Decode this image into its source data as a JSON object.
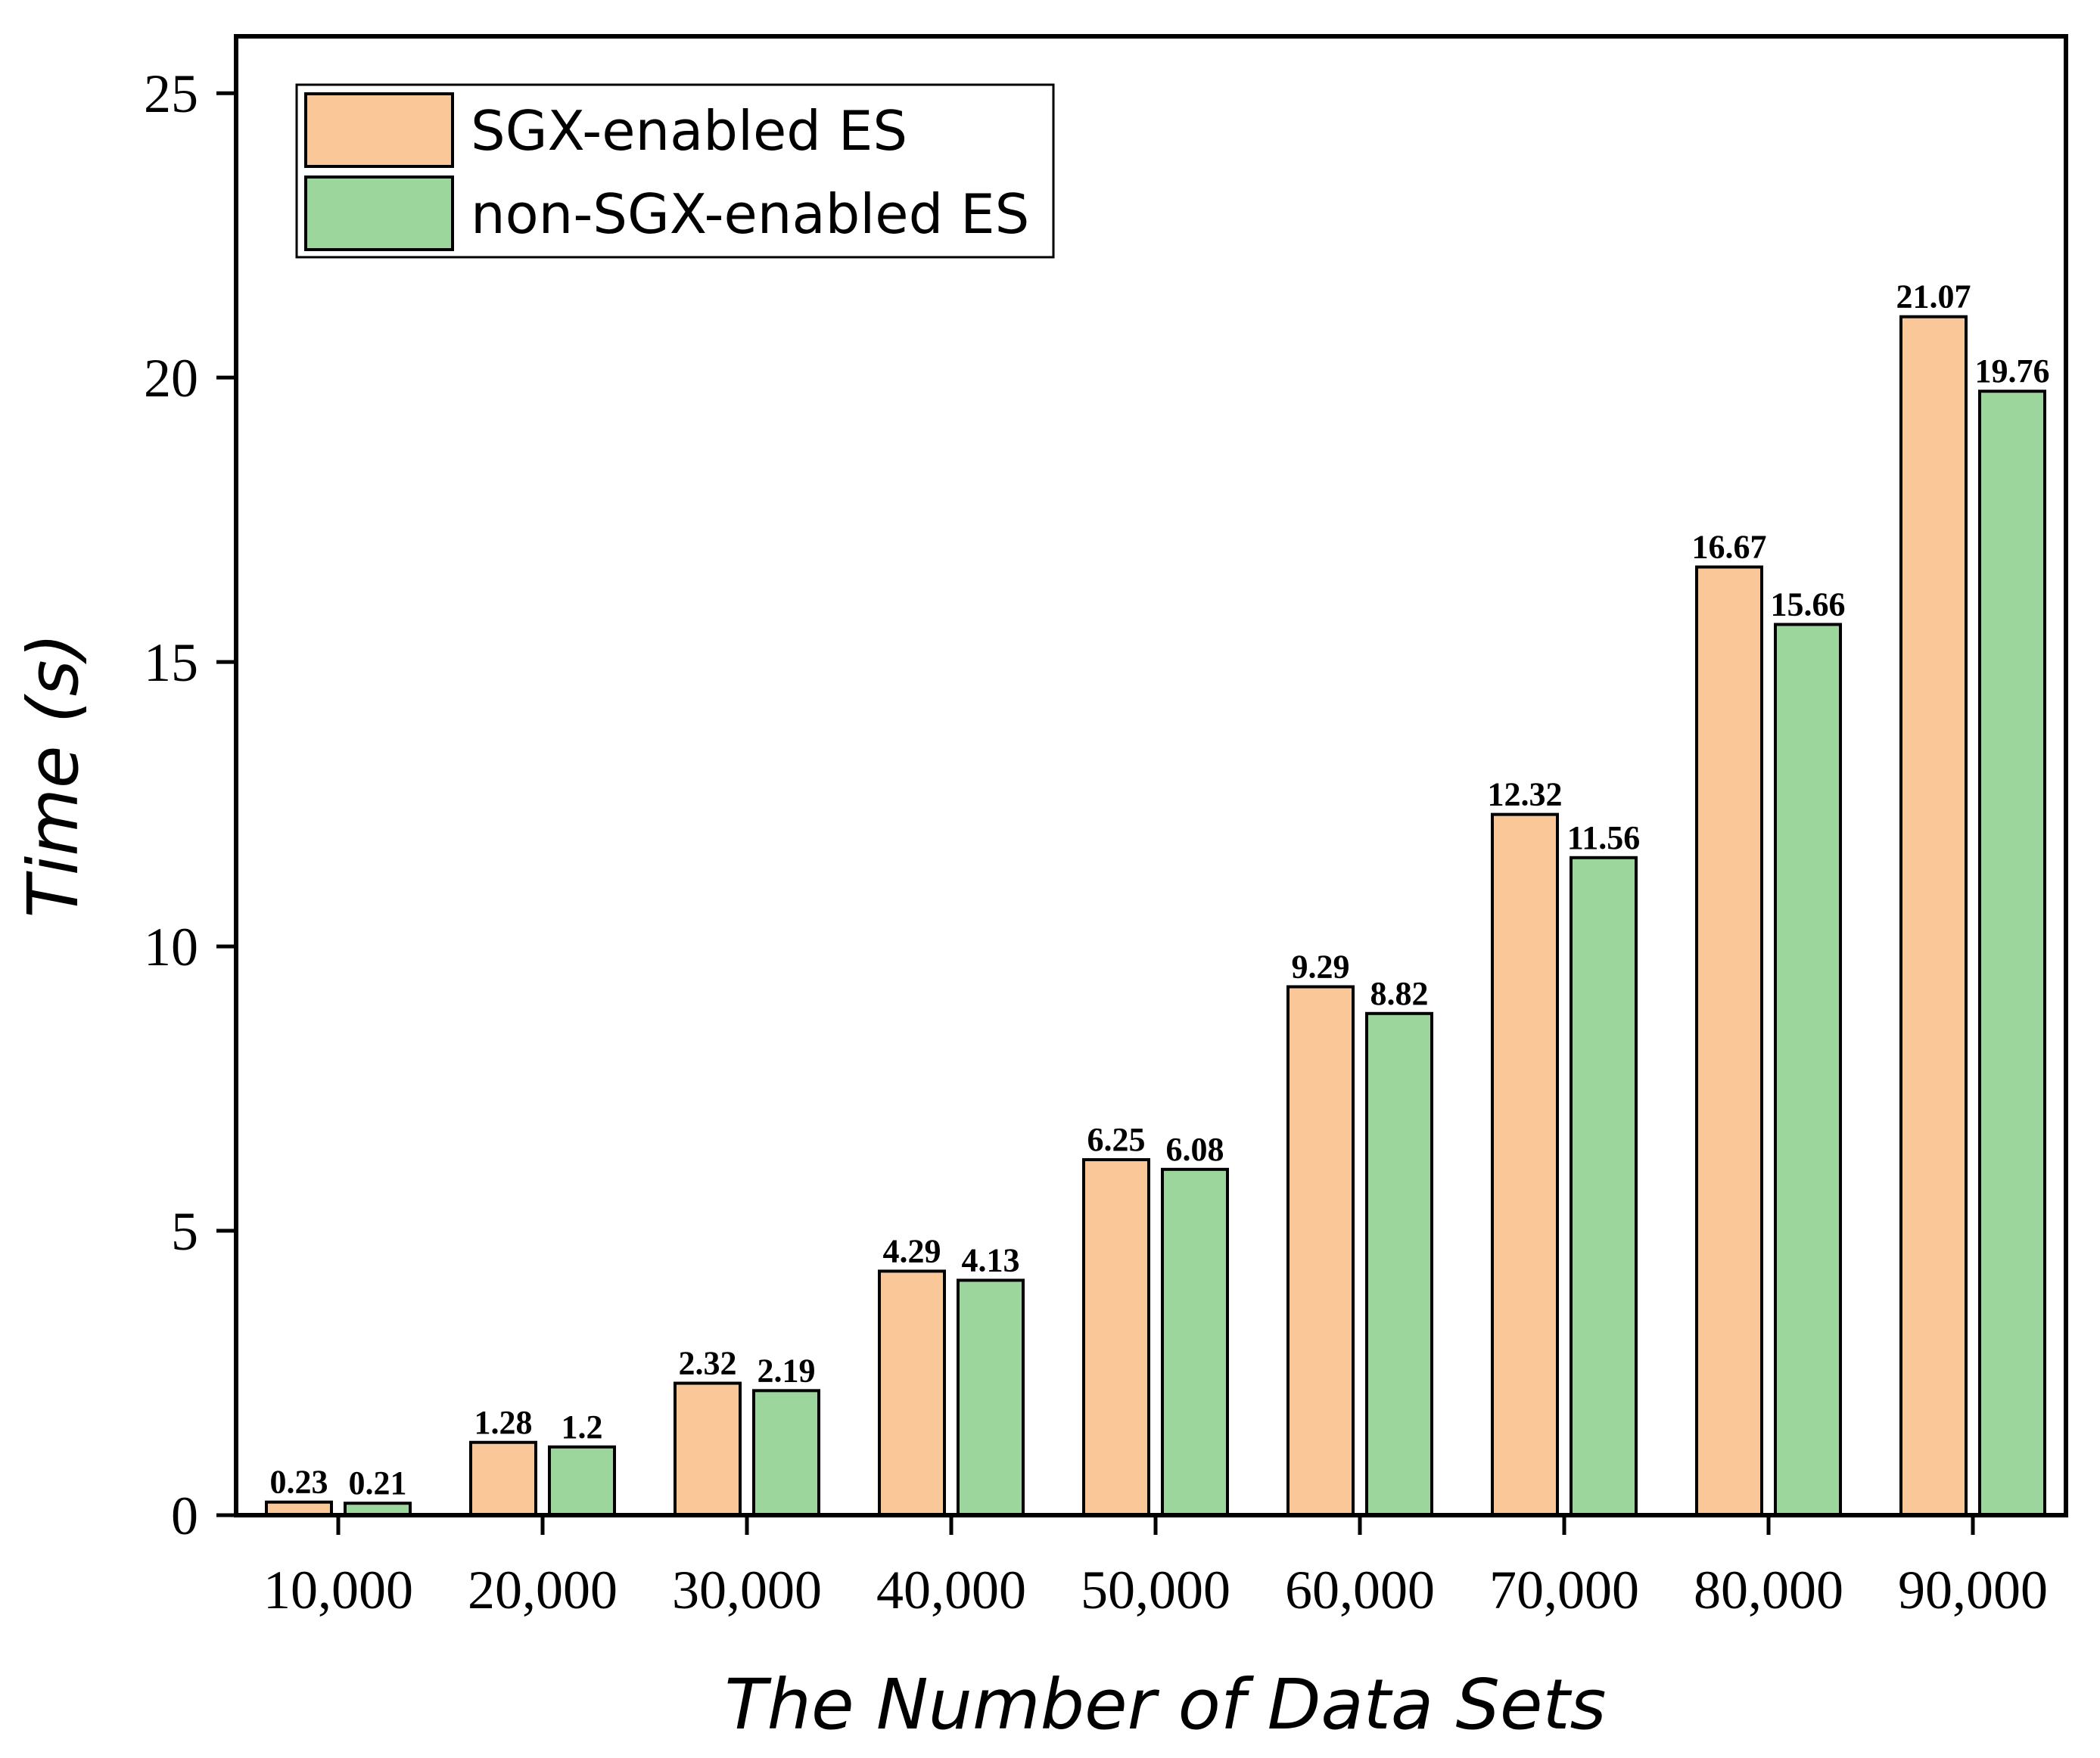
{
  "chart_data": {
    "type": "bar",
    "title": "",
    "xlabel": "The Number of Data Sets",
    "ylabel": "Time (s)",
    "ylim": [
      0,
      26
    ],
    "yticks": [
      0,
      5,
      10,
      15,
      20,
      25
    ],
    "ytick_labels": [
      "0",
      "5",
      "10",
      "15",
      "20",
      "25"
    ],
    "grid": false,
    "legend_position": "top-left",
    "categories": [
      "10,000",
      "20,000",
      "30,000",
      "40,000",
      "50,000",
      "60,000",
      "70,000",
      "80,000",
      "90,000"
    ],
    "series": [
      {
        "name": "SGX-enabled ES",
        "color": "#FAC898",
        "values": [
          0.23,
          1.28,
          2.32,
          4.29,
          6.25,
          9.29,
          12.32,
          16.67,
          21.07
        ],
        "labels": [
          "0.23",
          "1.28",
          "2.32",
          "4.29",
          "6.25",
          "9.29",
          "12.32",
          "16.67",
          "21.07"
        ]
      },
      {
        "name": "non-SGX-enabled ES",
        "color": "#9DD69D",
        "values": [
          0.21,
          1.2,
          2.19,
          4.13,
          6.08,
          8.82,
          11.56,
          15.66,
          19.76
        ],
        "labels": [
          "0.21",
          "1.2",
          "2.19",
          "4.13",
          "6.08",
          "8.82",
          "11.56",
          "15.66",
          "19.76"
        ]
      }
    ]
  }
}
